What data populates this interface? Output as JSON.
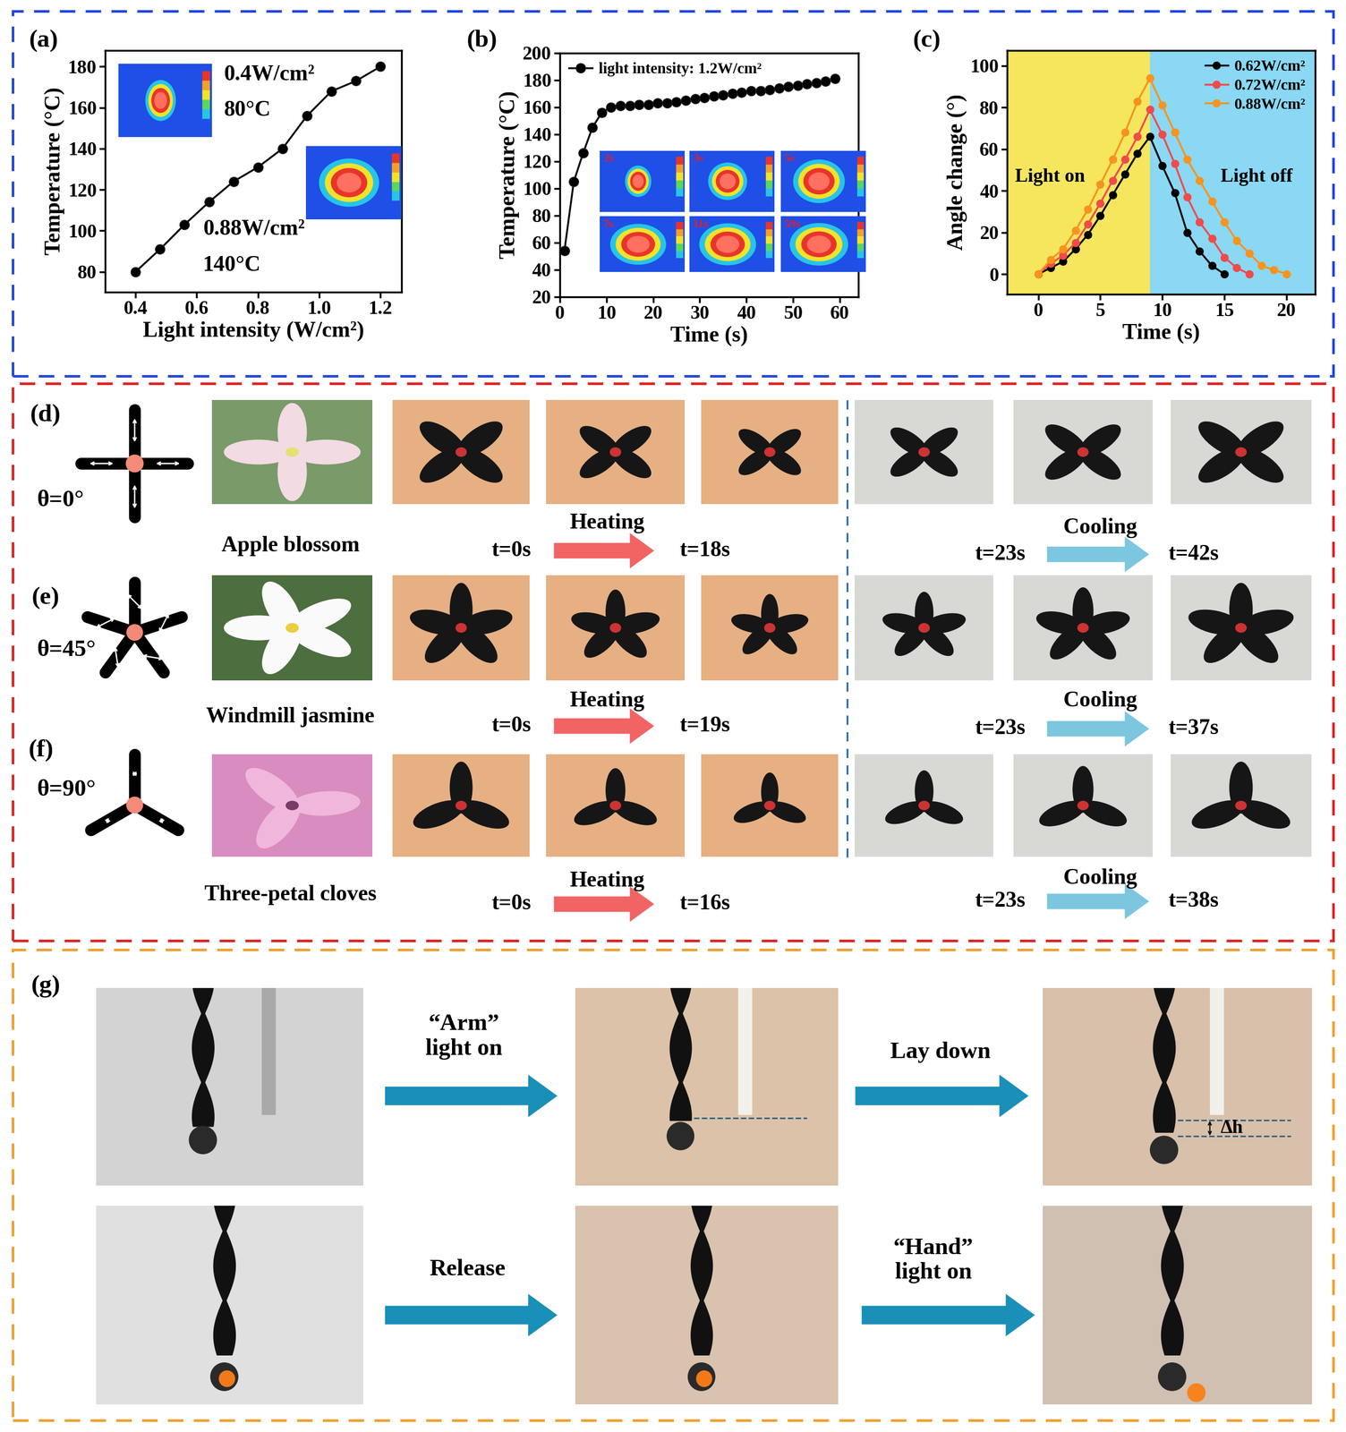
{
  "chart_data": [
    {
      "panel_label": "(a)",
      "type": "line",
      "x_label": "Light intensity (W/cm²)",
      "y_label": "Temperature (°C)",
      "series": [
        {
          "color": "#000000",
          "marker": "circle",
          "line_style": "solid",
          "x": [
            0.4,
            0.48,
            0.56,
            0.64,
            0.72,
            0.8,
            0.88,
            0.96,
            1.04,
            1.12,
            1.2
          ],
          "values": [
            80,
            91,
            103,
            114,
            124,
            131,
            140,
            156,
            168,
            173,
            180
          ]
        }
      ],
      "xlim": [
        0.3,
        1.27
      ],
      "xticks": [
        0.4,
        0.6,
        0.8,
        {
          "value": 1.0,
          "label": "1.0"
        },
        1.2
      ],
      "ylim": [
        70,
        188
      ],
      "yticks": [
        80,
        100,
        120,
        140,
        160,
        180
      ],
      "annotations": [
        "0.4W/cm²",
        "80°C",
        "0.88W/cm²",
        "140°C"
      ]
    },
    {
      "panel_label": "(b)",
      "type": "line",
      "x_label": "Time (s)",
      "y_label": "Temperature (°C)",
      "series": [
        {
          "name": "light intensity: 1.2W/cm²",
          "color": "#000000",
          "marker": "circle",
          "line_style": "solid",
          "x": [
            1,
            3,
            5,
            7,
            9,
            11,
            13,
            15,
            17,
            19,
            21,
            23,
            25,
            27,
            29,
            31,
            33,
            35,
            37,
            39,
            41,
            43,
            45,
            47,
            49,
            51,
            53,
            55,
            57,
            59
          ],
          "values": [
            54,
            105,
            126,
            145,
            156,
            160,
            161,
            161,
            162,
            162,
            163,
            163,
            164,
            165,
            166,
            167,
            168,
            169,
            170,
            171,
            172,
            172,
            173,
            174,
            175,
            176,
            177,
            178,
            179,
            181
          ]
        }
      ],
      "legend": "upper left",
      "xlim": [
        0,
        64
      ],
      "xticks": [
        0,
        10,
        20,
        30,
        40,
        50,
        60
      ],
      "ylim": [
        20,
        200
      ],
      "yticks": [
        20,
        40,
        60,
        80,
        100,
        120,
        140,
        160,
        180,
        200
      ],
      "insets": [
        "2s",
        "3s",
        "5s",
        "7s",
        "11s",
        "59s"
      ]
    },
    {
      "panel_label": "(c)",
      "type": "line",
      "x_label": "Time (s)",
      "y_label": "Angle change (°)",
      "series": [
        {
          "name": "0.62W/cm²",
          "color": "#000000",
          "marker": "circle",
          "line_style": "solid",
          "x": [
            0,
            1,
            2,
            3,
            4,
            5,
            6,
            7,
            8,
            9,
            10,
            11,
            12,
            13,
            14,
            15
          ],
          "values": [
            0,
            3,
            6,
            12,
            19,
            28,
            38,
            48,
            58,
            66,
            52,
            39,
            20,
            11,
            4,
            0
          ]
        },
        {
          "name": "0.72W/cm²",
          "color": "#f04a4a",
          "marker": "circle",
          "line_style": "solid",
          "x": [
            0,
            1,
            2,
            3,
            4,
            5,
            6,
            7,
            8,
            9,
            10,
            11,
            12,
            13,
            14,
            15,
            16,
            17
          ],
          "values": [
            0,
            5,
            9,
            15,
            24,
            34,
            45,
            55,
            66,
            79,
            67,
            53,
            37,
            25,
            17,
            8,
            3,
            0
          ]
        },
        {
          "name": "0.88W/cm²",
          "color": "#f7931e",
          "marker": "circle",
          "line_style": "solid",
          "x": [
            0,
            1,
            2,
            3,
            4,
            5,
            6,
            7,
            8,
            9,
            10,
            11,
            12,
            13,
            14,
            15,
            16,
            17,
            18,
            19,
            20
          ],
          "values": [
            0,
            7,
            12,
            21,
            31,
            43,
            55,
            68,
            83,
            94,
            81,
            68,
            55,
            45,
            35,
            25,
            16,
            10,
            4,
            2,
            0
          ]
        }
      ],
      "legend": "upper right",
      "light_off_at": 9,
      "region_labels": [
        "Light on",
        "Light off"
      ],
      "xlim": [
        -2.5,
        22.3
      ],
      "xticks": [
        0,
        5,
        10,
        15,
        20
      ],
      "ylim": [
        -9.6,
        107.5
      ],
      "yticks": [
        0,
        20,
        40,
        60,
        80,
        100
      ]
    }
  ],
  "flower_panels": [
    {
      "panel_label": "(d)",
      "angle_label": "θ=0°",
      "theta": 0,
      "name": "Apple blossom",
      "petals": 4,
      "heating": {
        "text": "Heating",
        "start": "t=0s",
        "end": "t=18s"
      },
      "cooling": {
        "text": "Cooling",
        "start": "t=23s",
        "end": "t=42s"
      }
    },
    {
      "panel_label": "(e)",
      "angle_label": "θ=45°",
      "theta": 45,
      "name": "Windmill jasmine",
      "petals": 5,
      "heating": {
        "text": "Heating",
        "start": "t=0s",
        "end": "t=19s"
      },
      "cooling": {
        "text": "Cooling",
        "start": "t=23s",
        "end": "t=37s"
      }
    },
    {
      "panel_label": "(f)",
      "angle_label": "θ=90°",
      "theta": 90,
      "name": "Three-petal cloves",
      "petals": 3,
      "heating": {
        "text": "Heating",
        "start": "t=0s",
        "end": "t=16s"
      },
      "cooling": {
        "text": "Cooling",
        "start": "t=23s",
        "end": "t=38s"
      }
    }
  ],
  "panel_g": {
    "panel_label": "(g)",
    "rows": [
      {
        "steps": [
          "“Arm”\nlight on",
          "Lay down"
        ]
      },
      {
        "steps": [
          "Release",
          "“Hand”\nlight on"
        ]
      }
    ],
    "height_change": "Δh"
  }
}
